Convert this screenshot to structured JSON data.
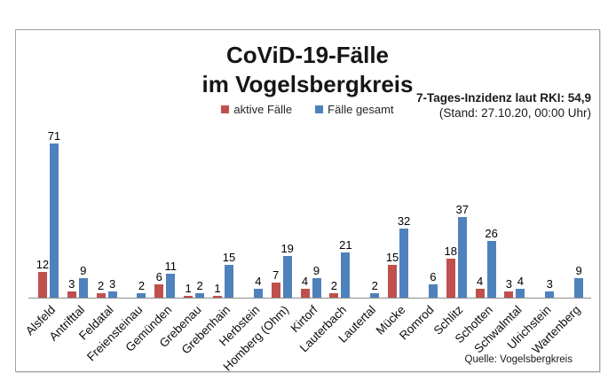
{
  "chart_data": {
    "type": "bar",
    "title": "CoViD-19-Fälle im Vogelsbergkreis",
    "title_lines": [
      "CoViD-19-Fälle",
      "im Vogelsbergkreis"
    ],
    "categories": [
      "Alsfeld",
      "Antrifttal",
      "Feldatal",
      "Freiensteinau",
      "Gemünden",
      "Grebenau",
      "Grebenhain",
      "Herbstein",
      "Homberg (Ohm)",
      "Kirtorf",
      "Lauterbach",
      "Lautertal",
      "Mücke",
      "Romrod",
      "Schlitz",
      "Schotten",
      "Schwalmtal",
      "Ulrichstein",
      "Wartenberg"
    ],
    "series": [
      {
        "name": "aktive Fälle",
        "color": "#C0504D",
        "values": [
          12,
          3,
          2,
          0,
          6,
          1,
          1,
          0,
          7,
          4,
          2,
          0,
          15,
          0,
          18,
          4,
          3,
          0,
          0
        ]
      },
      {
        "name": "Fälle gesamt",
        "color": "#4F81BD",
        "values": [
          71,
          9,
          3,
          2,
          11,
          2,
          15,
          4,
          19,
          9,
          21,
          2,
          32,
          6,
          37,
          26,
          4,
          3,
          9
        ]
      }
    ],
    "annotations": {
      "incidence_line1": "7-Tages-Inzidenz laut RKI: 54,9",
      "incidence_line2": "(Stand: 27.10.20, 00:00 Uhr)"
    },
    "source": "Quelle: Vogelsbergkreis",
    "legend_position": "top",
    "grid": false,
    "y_axis_visible": false,
    "ylim": [
      0,
      75
    ]
  }
}
